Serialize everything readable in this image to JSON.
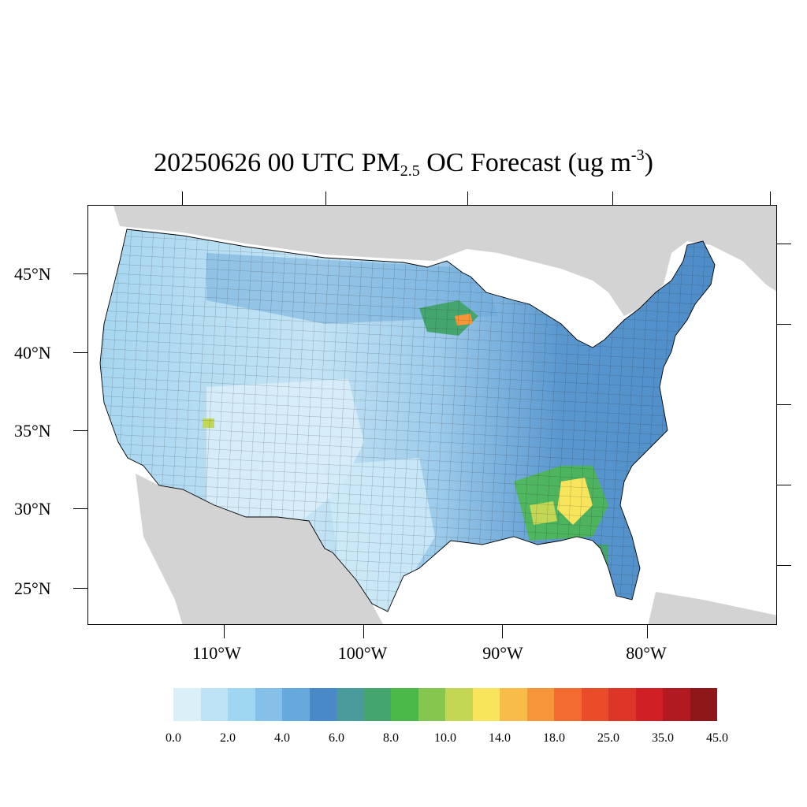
{
  "title": {
    "prefix": "20250626 00 UTC PM",
    "subscript": "2.5",
    "middle": " OC Forecast (ug m",
    "superscript": "-3",
    "suffix": ")"
  },
  "map": {
    "region": "Contiguous United States",
    "lon_range": [
      -119.5,
      -72
    ],
    "lat_range": [
      22.5,
      49.5
    ],
    "land_outside_color": "#d3d3d3",
    "water_color": "#ffffff",
    "boundary_color": "#000000"
  },
  "latitude_labels": [
    {
      "label": "45°N",
      "lat": 45
    },
    {
      "label": "40°N",
      "lat": 40
    },
    {
      "label": "35°N",
      "lat": 35
    },
    {
      "label": "30°N",
      "lat": 30
    },
    {
      "label": "25°N",
      "lat": 25
    }
  ],
  "longitude_labels": [
    {
      "label": "110°W",
      "lon": -110
    },
    {
      "label": "100°W",
      "lon": -100
    },
    {
      "label": "90°W",
      "lon": -90
    },
    {
      "label": "80°W",
      "lon": -80
    }
  ],
  "colorbar": {
    "colors": [
      "#dbeff9",
      "#bfe3f6",
      "#9fd7f2",
      "#84c0e7",
      "#66a9dc",
      "#4a89c8",
      "#4a9c9c",
      "#45a56e",
      "#4bb84a",
      "#85c74e",
      "#c3d754",
      "#f8e55c",
      "#f8bd48",
      "#f7953a",
      "#f46b2f",
      "#ea4c2a",
      "#dd3527",
      "#d11f26",
      "#b21a22",
      "#8f1619"
    ],
    "labels": [
      {
        "text": "0.0",
        "index": 0
      },
      {
        "text": "2.0",
        "index": 2
      },
      {
        "text": "4.0",
        "index": 4
      },
      {
        "text": "6.0",
        "index": 6
      },
      {
        "text": "8.0",
        "index": 8
      },
      {
        "text": "10.0",
        "index": 10
      },
      {
        "text": "14.0",
        "index": 12
      },
      {
        "text": "18.0",
        "index": 14
      },
      {
        "text": "25.0",
        "index": 16
      },
      {
        "text": "35.0",
        "index": 18
      },
      {
        "text": "45.0",
        "index": 20
      }
    ]
  }
}
